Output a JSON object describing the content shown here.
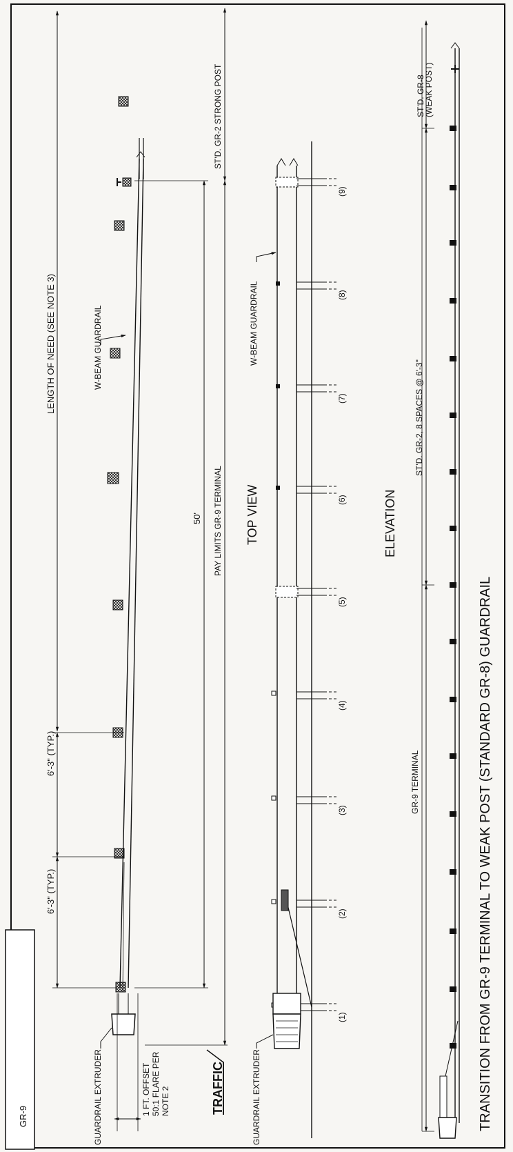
{
  "sheet_id": "GR-9",
  "top_view": {
    "title": "TOP VIEW",
    "length_of_need": "LENGTH OF NEED (SEE NOTE 3)",
    "w_beam": "W-BEAM GUARDRAIL",
    "strong_post": "ST'D. GR-2 STRONG POST",
    "spacing_a": "6'-3\" (TYP.)",
    "spacing_b": "6'-3\" (TYP.)",
    "fifty": "50'",
    "pay_limits": "PAY LIMITS GR-9 TERMINAL",
    "extruder": "GUARDRAIL EXTRUDER",
    "offset_1": "1 FT. OFFSET",
    "offset_2": "50:1 FLARE PER",
    "offset_3": "NOTE 2",
    "traffic": "TRAFFIC"
  },
  "elevation": {
    "title": "ELEVATION",
    "w_beam": "W-BEAM GUARDRAIL",
    "extruder": "GUARDRAIL EXTRUDER",
    "post_labels": [
      "(1)",
      "(2)",
      "(3)",
      "(4)",
      "(5)",
      "(6)",
      "(7)",
      "(8)",
      "(9)"
    ]
  },
  "transition": {
    "title": "TRANSITION FROM GR-9 TERMINAL TO WEAK POST (STANDARD GR-8) GUARDRAIL",
    "gr9_terminal": "GR-9 TERMINAL",
    "spaces": "ST'D. GR-2, 8 SPACES @ 6'-3\"",
    "weak_post_1": "ST'D. GR-8",
    "weak_post_2": "(WEAK POST)"
  }
}
